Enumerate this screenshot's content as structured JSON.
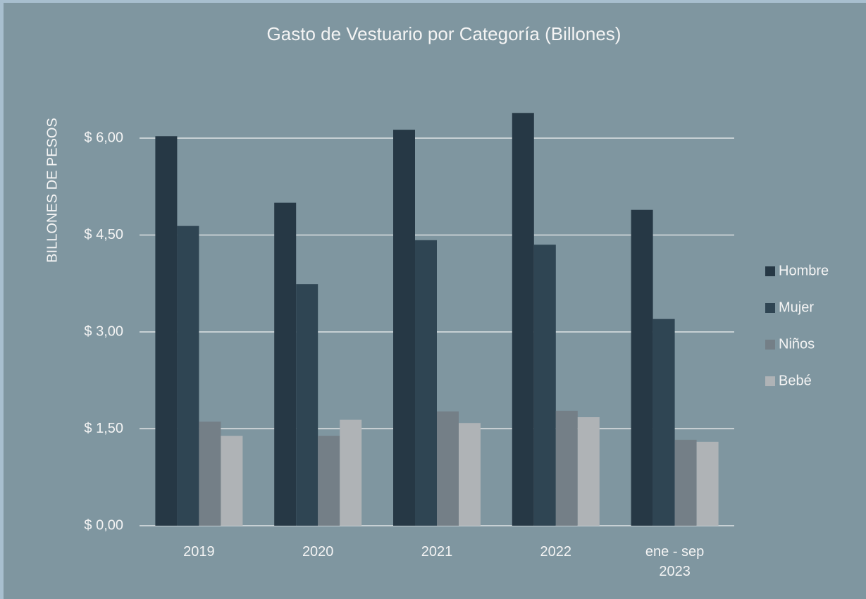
{
  "chart_data": {
    "type": "bar",
    "title": "Gasto de Vestuario por Categoría (Billones)",
    "y_label": "BILLONES DE PESOS",
    "categories": [
      "2019",
      "2020",
      "2021",
      "2022",
      "ene - sep 2023"
    ],
    "series": [
      {
        "name": "Hombre",
        "color": "#263845",
        "values": [
          6.03,
          5.0,
          6.13,
          6.39,
          4.89
        ]
      },
      {
        "name": "Mujer",
        "color": "#2f4553",
        "values": [
          4.64,
          3.74,
          4.42,
          4.35,
          3.2
        ]
      },
      {
        "name": "Niños",
        "color": "#747f87",
        "values": [
          1.61,
          1.39,
          1.77,
          1.78,
          1.33
        ]
      },
      {
        "name": "Bebé",
        "color": "#afb3b6",
        "values": [
          1.39,
          1.64,
          1.59,
          1.68,
          1.3
        ]
      }
    ],
    "ylim": [
      0,
      7.5
    ],
    "yticks": [
      {
        "value": 0,
        "label": "$ 0,00"
      },
      {
        "value": 1.5,
        "label": "$ 1,50"
      },
      {
        "value": 3,
        "label": "$ 3,00"
      },
      {
        "value": 4.5,
        "label": "$ 4,50"
      },
      {
        "value": 6,
        "label": "$ 6,00"
      }
    ],
    "grid": true,
    "legend": "right"
  }
}
